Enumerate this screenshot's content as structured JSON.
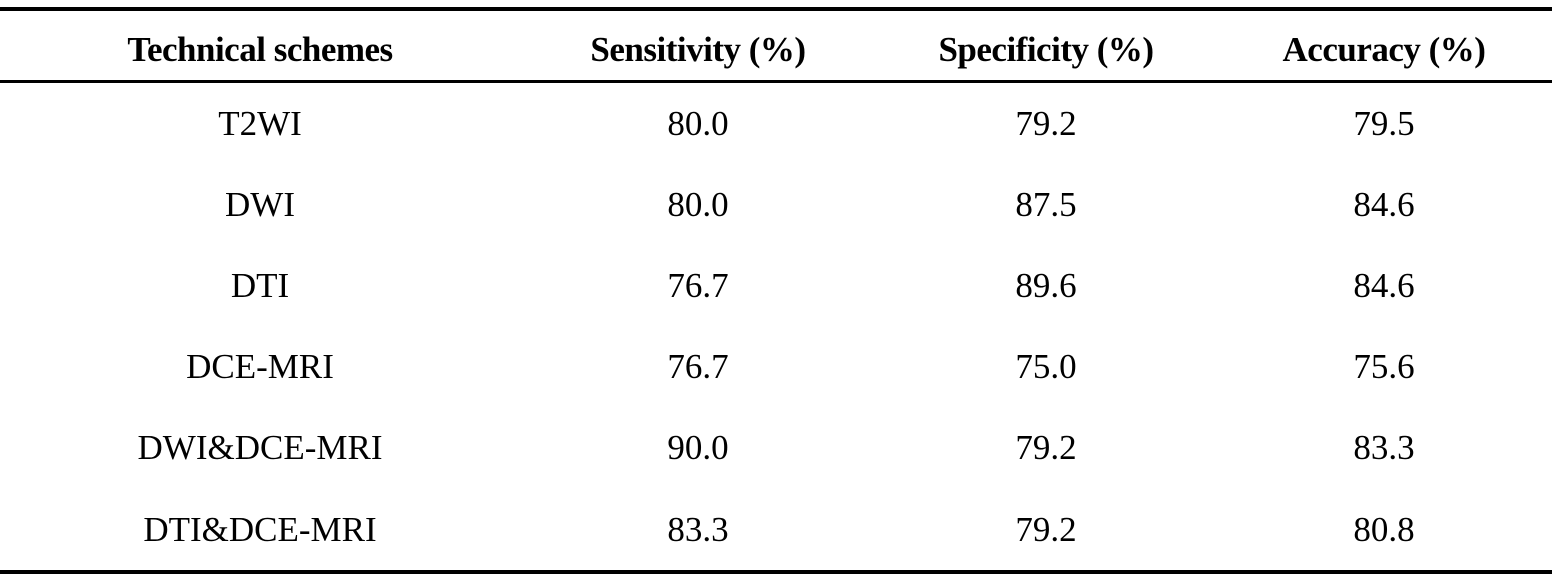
{
  "table": {
    "headers": [
      "Technical schemes",
      "Sensitivity (%)",
      "Specificity (%)",
      "Accuracy (%)"
    ],
    "rows": [
      [
        "T2WI",
        "80.0",
        "79.2",
        "79.5"
      ],
      [
        "DWI",
        "80.0",
        "87.5",
        "84.6"
      ],
      [
        "DTI",
        "76.7",
        "89.6",
        "84.6"
      ],
      [
        "DCE-MRI",
        "76.7",
        "75.0",
        "75.6"
      ],
      [
        "DWI&DCE-MRI",
        "90.0",
        "79.2",
        "83.3"
      ],
      [
        "DTI&DCE-MRI",
        "83.3",
        "79.2",
        "80.8"
      ]
    ]
  }
}
